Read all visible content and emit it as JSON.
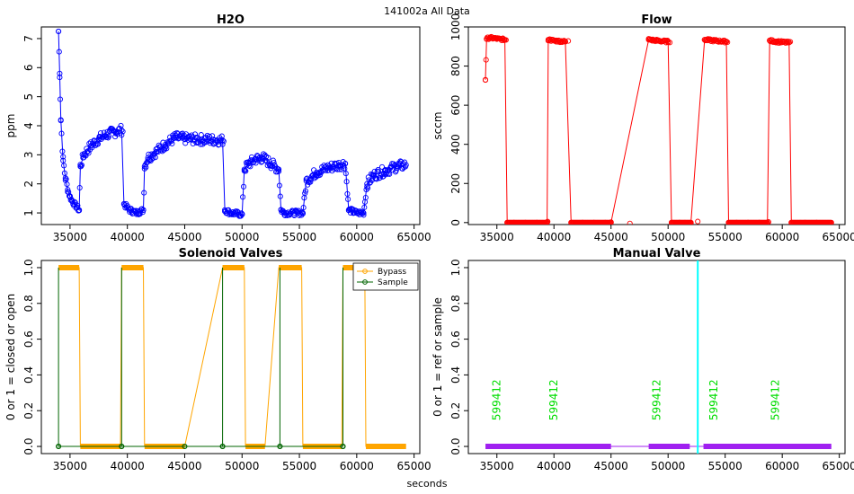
{
  "figure": {
    "title": "141002a   All Data",
    "xlabel": "seconds"
  },
  "colors": {
    "h2o": "#0000ff",
    "flow": "#ff0000",
    "bypass": "#ffa500",
    "sample": "#006400",
    "manual": "#a020f0",
    "marker": "#00ffff",
    "annot": "#00dd00"
  },
  "chart_data": [
    {
      "type": "scatter",
      "title": "H2O",
      "ylabel": "ppm",
      "xlim": [
        32500,
        65500
      ],
      "ylim": [
        0.6,
        7.4
      ],
      "xticks": [
        "35000",
        "40000",
        "45000",
        "50000",
        "55000",
        "60000",
        "65000"
      ],
      "yticks": [
        "1",
        "2",
        "3",
        "4",
        "5",
        "6",
        "7"
      ],
      "series": [
        {
          "x": [
            34000,
            34100,
            34200,
            34400,
            34600,
            34800,
            35000,
            35200,
            35400,
            35600,
            35800,
            35900,
            36200,
            36800,
            37500,
            38200,
            39000,
            39500,
            39700,
            40200,
            40800,
            41400,
            41500,
            41800,
            42500,
            43300,
            44200,
            45000,
            48300,
            48500,
            49000,
            50000,
            50200,
            50600,
            51200,
            51800,
            53200,
            53400,
            53700,
            54500,
            55300,
            55600,
            56500,
            57500,
            58500,
            59000,
            59300,
            60000,
            60600,
            60900,
            61500,
            62500,
            63500,
            64300
          ],
          "y": [
            7.25,
            5.8,
            4.2,
            2.8,
            2.2,
            1.8,
            1.55,
            1.4,
            1.3,
            1.2,
            1.1,
            2.6,
            3.0,
            3.3,
            3.55,
            3.7,
            3.8,
            3.85,
            1.3,
            1.1,
            1.0,
            1.1,
            2.6,
            2.9,
            3.1,
            3.35,
            3.6,
            3.55,
            3.5,
            1.1,
            1.0,
            0.95,
            2.5,
            2.7,
            2.85,
            2.9,
            2.5,
            1.1,
            1.0,
            1.0,
            1.0,
            2.1,
            2.4,
            2.55,
            2.65,
            2.7,
            1.1,
            1.0,
            1.0,
            2.0,
            2.3,
            2.45,
            2.6,
            2.65
          ]
        }
      ]
    },
    {
      "type": "scatter",
      "title": "Flow",
      "ylabel": "sccm",
      "xlim": [
        32500,
        65500
      ],
      "ylim": [
        -10,
        1000
      ],
      "xticks": [
        "35000",
        "40000",
        "45000",
        "50000",
        "55000",
        "60000",
        "65000"
      ],
      "yticks": [
        "0",
        "200",
        "400",
        "600",
        "800",
        "1000"
      ],
      "series": [
        {
          "x": [
            34000,
            34100,
            34400,
            35000,
            35700,
            35900,
            36500,
            37500,
            38500,
            39400,
            39500,
            40000,
            41000,
            41500,
            42500,
            43500,
            44500,
            45000,
            48300,
            49000,
            50000,
            50300,
            51000,
            52000,
            53200,
            54000,
            55100,
            55300,
            56000,
            57000,
            58000,
            58700,
            58900,
            59500,
            60600,
            60800,
            62000,
            63000,
            64300
          ],
          "y": [
            730,
            940,
            945,
            940,
            935,
            0,
            0,
            0,
            0,
            0,
            935,
            930,
            925,
            0,
            0,
            0,
            0,
            0,
            935,
            930,
            925,
            0,
            0,
            0,
            935,
            930,
            925,
            0,
            0,
            0,
            0,
            0,
            930,
            925,
            920,
            0,
            0,
            0,
            0
          ]
        }
      ]
    },
    {
      "type": "line",
      "title": "Solenoid Valves",
      "ylabel": "0 or 1 = closed or open",
      "xlim": [
        32500,
        65500
      ],
      "ylim": [
        -0.04,
        1.04
      ],
      "xticks": [
        "35000",
        "40000",
        "45000",
        "50000",
        "55000",
        "60000",
        "65000"
      ],
      "yticks": [
        "0.0",
        "0.2",
        "0.4",
        "0.6",
        "0.8",
        "1.0"
      ],
      "legend": {
        "position": "top-right",
        "entries": [
          "Bypass",
          "Sample"
        ]
      },
      "series": [
        {
          "name": "Bypass",
          "x": [
            34000,
            35800,
            35900,
            39400,
            39500,
            41400,
            41500,
            45000,
            48300,
            50200,
            50300,
            52000,
            53200,
            55200,
            55300,
            58700,
            58800,
            60700,
            60800,
            64300
          ],
          "y": [
            1,
            1,
            0,
            0,
            1,
            1,
            0,
            0,
            1,
            1,
            0,
            0,
            1,
            1,
            0,
            0,
            1,
            1,
            0,
            0
          ]
        },
        {
          "name": "Sample",
          "x": [
            34000,
            34000,
            34000,
            39500,
            39500,
            39500,
            45000,
            48300,
            48300,
            48300,
            53300,
            53300,
            53300,
            58800,
            58800,
            58800
          ],
          "y": [
            0,
            1,
            0,
            0,
            1,
            0,
            0,
            0,
            1,
            0,
            0,
            1,
            0,
            0,
            1,
            0
          ]
        }
      ]
    },
    {
      "type": "line",
      "title": "Manual Valve",
      "ylabel": "0 or 1 = ref or sample",
      "xlim": [
        32500,
        65500
      ],
      "ylim": [
        -0.04,
        1.04
      ],
      "xticks": [
        "35000",
        "40000",
        "45000",
        "50000",
        "55000",
        "60000",
        "65000"
      ],
      "yticks": [
        "0.0",
        "0.2",
        "0.4",
        "0.6",
        "0.8",
        "1.0"
      ],
      "series": [
        {
          "x": [
            34000,
            45000,
            48300,
            51900,
            53100,
            64300
          ],
          "y": [
            0,
            0,
            0,
            0,
            0,
            0
          ]
        }
      ],
      "vline_x": 52600,
      "annotations": [
        {
          "x": 35000,
          "text": "599412"
        },
        {
          "x": 40000,
          "text": "599412"
        },
        {
          "x": 49000,
          "text": "599412"
        },
        {
          "x": 54000,
          "text": "599412"
        },
        {
          "x": 59400,
          "text": "599412"
        }
      ]
    }
  ]
}
